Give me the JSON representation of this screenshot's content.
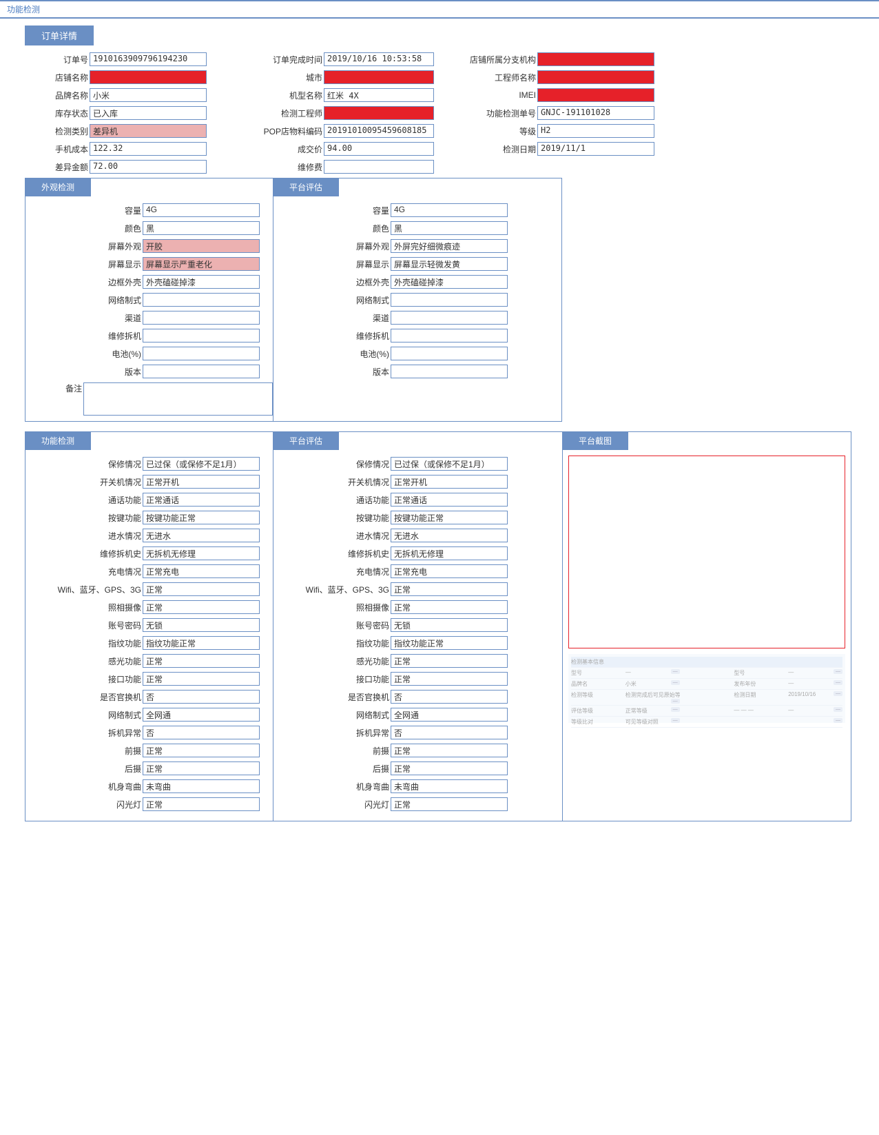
{
  "topbar": {
    "title": "功能检测"
  },
  "orderDetail": {
    "tab": "订单详情",
    "rows": [
      [
        {
          "label": "订单号",
          "value": "1910163909796194230",
          "cls": ""
        },
        {
          "label": "订单完成时间",
          "value": "2019/10/16 10:53:58",
          "cls": ""
        },
        {
          "label": "店铺所属分支机构",
          "value": "",
          "cls": "red"
        }
      ],
      [
        {
          "label": "店铺名称",
          "value": "",
          "cls": "red"
        },
        {
          "label": "城市",
          "value": "",
          "cls": "red"
        },
        {
          "label": "工程师名称",
          "value": "",
          "cls": "red"
        }
      ],
      [
        {
          "label": "品牌名称",
          "value": "小米",
          "cls": ""
        },
        {
          "label": "机型名称",
          "value": "红米 4X",
          "cls": ""
        },
        {
          "label": "IMEI",
          "value": "",
          "cls": "red"
        }
      ],
      [
        {
          "label": "库存状态",
          "value": "已入库",
          "cls": ""
        },
        {
          "label": "检测工程师",
          "value": "",
          "cls": "red"
        },
        {
          "label": "功能检测单号",
          "value": "GNJC-191101028",
          "cls": ""
        }
      ],
      [
        {
          "label": "检测类别",
          "value": "差异机",
          "cls": "pink"
        },
        {
          "label": "POP店物料编码",
          "value": "20191010095459608185",
          "cls": ""
        },
        {
          "label": "等级",
          "value": "H2",
          "cls": ""
        }
      ],
      [
        {
          "label": "手机成本",
          "value": "122.32",
          "cls": ""
        },
        {
          "label": "成交价",
          "value": "94.00",
          "cls": ""
        },
        {
          "label": "检测日期",
          "value": "2019/11/1",
          "cls": ""
        }
      ],
      [
        {
          "label": "差异金额",
          "value": "72.00",
          "cls": ""
        },
        {
          "label": "维修费",
          "value": "",
          "cls": ""
        },
        null
      ]
    ]
  },
  "appearance": {
    "tabA": "外观检测",
    "tabB": "平台评估",
    "remarkLabel": "备注",
    "rows": [
      {
        "label": "容量",
        "a": "4G",
        "b": "4G",
        "aCls": "",
        "bCls": ""
      },
      {
        "label": "颜色",
        "a": "黑",
        "b": "黑",
        "aCls": "",
        "bCls": ""
      },
      {
        "label": "屏幕外观",
        "a": "开胶",
        "b": "外屏完好细微痕迹",
        "aCls": "pink",
        "bCls": ""
      },
      {
        "label": "屏幕显示",
        "a": "屏幕显示严重老化",
        "b": "屏幕显示轻微发黄",
        "aCls": "pink",
        "bCls": ""
      },
      {
        "label": "边框外壳",
        "a": "外壳磕碰掉漆",
        "b": "外壳磕碰掉漆",
        "aCls": "",
        "bCls": ""
      },
      {
        "label": "网络制式",
        "a": "",
        "b": "",
        "aCls": "",
        "bCls": ""
      },
      {
        "label": "渠道",
        "a": "",
        "b": "",
        "aCls": "",
        "bCls": ""
      },
      {
        "label": "维修拆机",
        "a": "",
        "b": "",
        "aCls": "",
        "bCls": ""
      },
      {
        "label": "电池(%)",
        "a": "",
        "b": "",
        "aCls": "",
        "bCls": ""
      },
      {
        "label": "版本",
        "a": "",
        "b": "",
        "aCls": "",
        "bCls": ""
      }
    ]
  },
  "function": {
    "tabA": "功能检测",
    "tabB": "平台评估",
    "tabC": "平台截图",
    "rows": [
      {
        "label": "保修情况",
        "a": "已过保（或保修不足1月）",
        "b": "已过保（或保修不足1月）"
      },
      {
        "label": "开关机情况",
        "a": "正常开机",
        "b": "正常开机"
      },
      {
        "label": "通话功能",
        "a": "正常通话",
        "b": "正常通话"
      },
      {
        "label": "按键功能",
        "a": "按键功能正常",
        "b": "按键功能正常"
      },
      {
        "label": "进水情况",
        "a": "无进水",
        "b": "无进水"
      },
      {
        "label": "维修拆机史",
        "a": "无拆机无修理",
        "b": "无拆机无修理"
      },
      {
        "label": "充电情况",
        "a": "正常充电",
        "b": "正常充电"
      },
      {
        "label": "Wifi、蓝牙、GPS、3G",
        "a": "正常",
        "b": "正常"
      },
      {
        "label": "照相摄像",
        "a": "正常",
        "b": "正常"
      },
      {
        "label": "账号密码",
        "a": "无锁",
        "b": "无锁"
      },
      {
        "label": "指纹功能",
        "a": "指纹功能正常",
        "b": "指纹功能正常"
      },
      {
        "label": "感光功能",
        "a": "正常",
        "b": "正常"
      },
      {
        "label": "接口功能",
        "a": "正常",
        "b": "正常"
      },
      {
        "label": "是否官换机",
        "a": "否",
        "b": "否"
      },
      {
        "label": "网络制式",
        "a": "全网通",
        "b": "全网通"
      },
      {
        "label": "拆机异常",
        "a": "否",
        "b": "否"
      },
      {
        "label": "前摄",
        "a": "正常",
        "b": "正常"
      },
      {
        "label": "后摄",
        "a": "正常",
        "b": "正常"
      },
      {
        "label": "机身弯曲",
        "a": "未弯曲",
        "b": "未弯曲"
      },
      {
        "label": "闪光灯",
        "a": "正常",
        "b": "正常"
      }
    ]
  },
  "screenshotTable": {
    "header": [
      "检测基本信息",
      "",
      "",
      ""
    ],
    "rows": [
      [
        "型号",
        "—",
        "",
        "型号",
        "—"
      ],
      [
        "品牌名",
        "小米",
        "",
        "发布年份",
        "—"
      ],
      [
        "检测等级",
        "检测完成后可见原始等级",
        "",
        "检测日期",
        "2019/10/16"
      ],
      [
        "评估等级",
        "正常等级",
        "",
        "— — —",
        "—"
      ],
      [
        "等级比对",
        "可见等级对照",
        "",
        "",
        ""
      ]
    ]
  }
}
